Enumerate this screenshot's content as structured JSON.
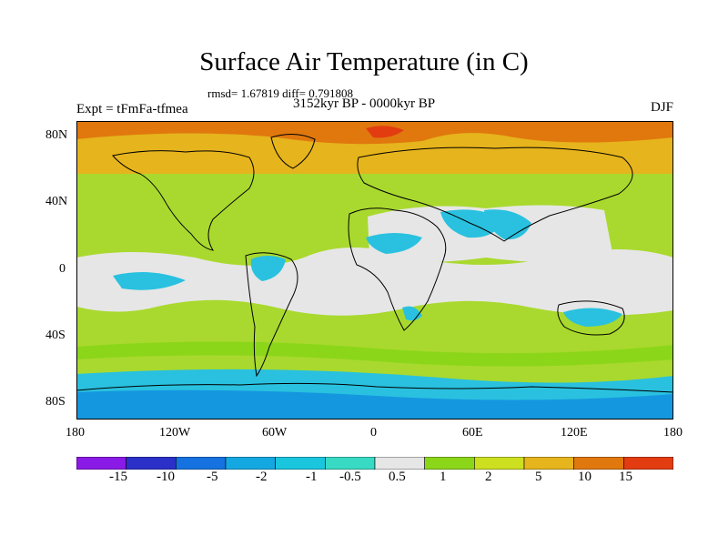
{
  "title": "Surface Air Temperature (in C)",
  "stats": "rmsd= 1.67819 diff= 0.791808",
  "expt": "Expt = tFmFa-tfmea",
  "period": "3152kyr BP - 0000kyr BP",
  "season": "DJF",
  "lat_ticks": [
    "80N",
    "40N",
    "0",
    "40S",
    "80S"
  ],
  "lon_ticks": [
    "180",
    "120W",
    "60W",
    "0",
    "60E",
    "120E",
    "180"
  ],
  "colorbar": {
    "labels": [
      "-15",
      "-10",
      "-5",
      "-2",
      "-1",
      "-0.5",
      "0.5",
      "1",
      "2",
      "5",
      "10",
      "15"
    ],
    "colors": [
      "#8a1ae6",
      "#2a30c8",
      "#1572e0",
      "#14a8e2",
      "#19c6de",
      "#38dac4",
      "#e6e6e6",
      "#8cd61a",
      "#cce020",
      "#e6b41c",
      "#e0780e",
      "#e23c10"
    ]
  },
  "palette": {
    "ocean_warm": "#a9d92e",
    "tropics": "#e6e6e6",
    "cool": "#29c1df",
    "cold": "#1597e0",
    "warm": "#e6b41c",
    "hot": "#e0780e",
    "coast": "#000000"
  }
}
